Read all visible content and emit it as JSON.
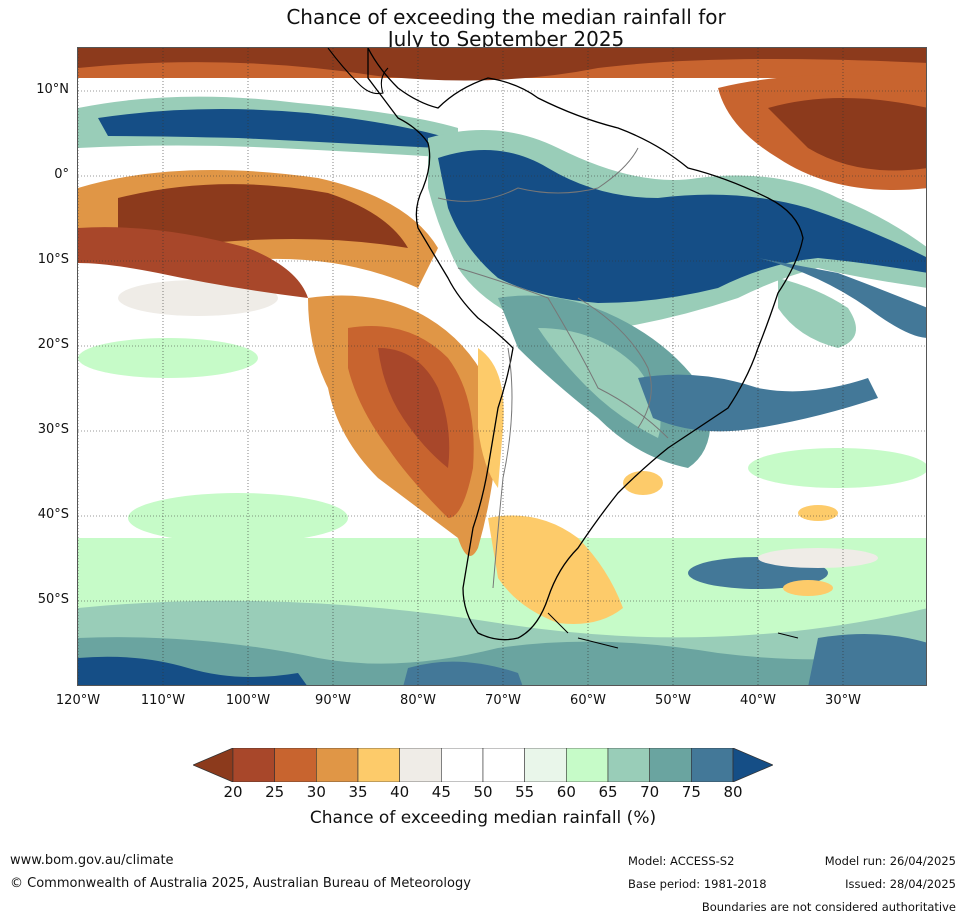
{
  "title_line1": "Chance of exceeding the median rainfall for",
  "title_line2": "July to September 2025",
  "lat_labels": [
    "10°N",
    "0°",
    "10°S",
    "20°S",
    "30°S",
    "40°S",
    "50°S"
  ],
  "lon_labels": [
    "120°W",
    "110°W",
    "100°W",
    "90°W",
    "80°W",
    "70°W",
    "60°W",
    "50°W",
    "40°W",
    "30°W"
  ],
  "colorbar": {
    "ticks": [
      "20",
      "25",
      "30",
      "35",
      "40",
      "45",
      "50",
      "55",
      "60",
      "65",
      "70",
      "75",
      "80"
    ],
    "colors": [
      "#8c3a1c",
      "#a8472a",
      "#c8642f",
      "#e09646",
      "#fdcb6a",
      "#efece7",
      "#ffffff",
      "#ffffff",
      "#e9f6ea",
      "#c6fbc8",
      "#99cdb8",
      "#6aa4a0",
      "#437898",
      "#154e86"
    ],
    "label": "Chance of exceeding median rainfall (%)"
  },
  "footer": {
    "url": "www.bom.gov.au/climate",
    "copyright": "© Commonwealth of Australia 2025, Australian Bureau of Meteorology",
    "model": "Model: ACCESS-S2",
    "base_period": "Base period: 1981-2018",
    "model_run": "Model run: 26/04/2025",
    "issued": "Issued: 28/04/2025",
    "disclaimer": "Boundaries are not considered authoritative"
  }
}
